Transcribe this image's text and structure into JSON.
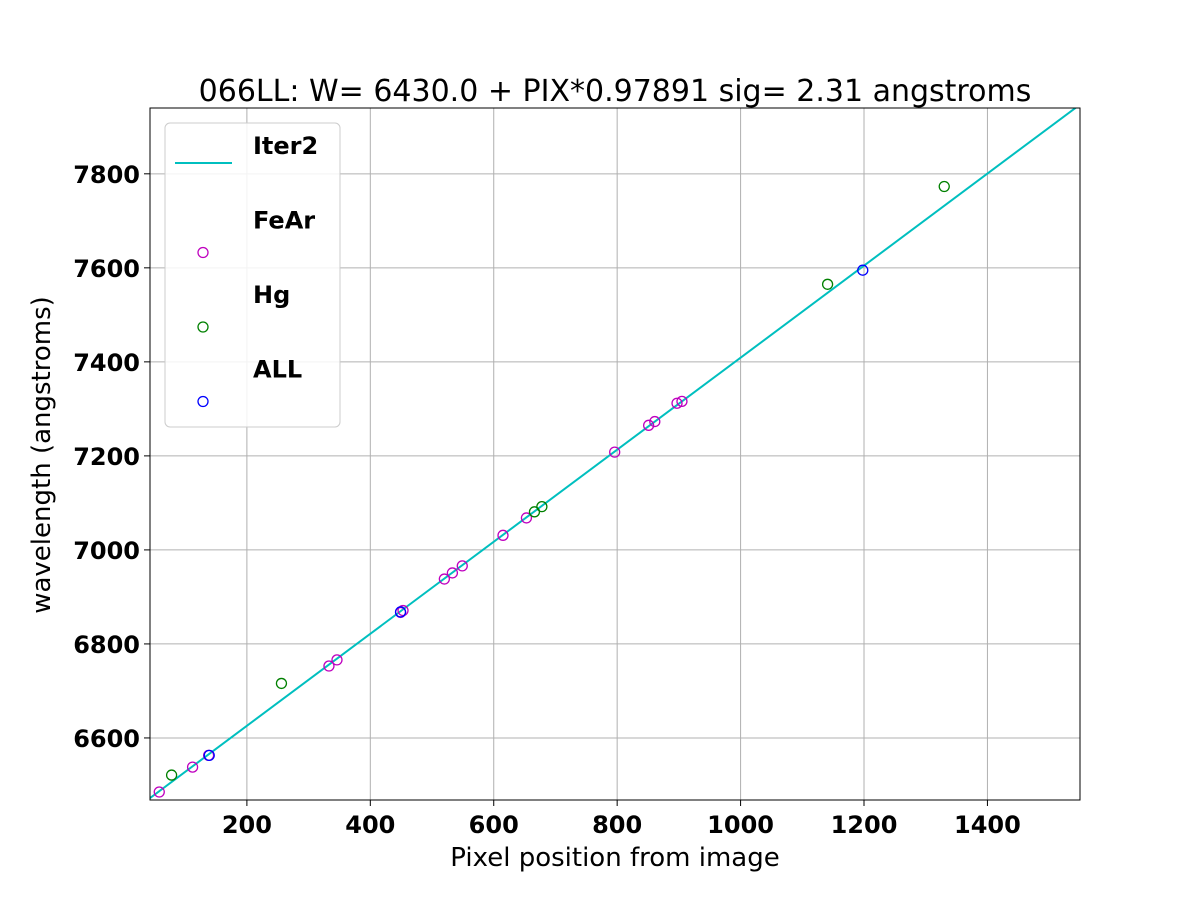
{
  "chart_data": {
    "type": "scatter",
    "title": "066LL: W= 6430.0 + PIX*0.97891  sig=  2.31 angstroms",
    "xlabel": "Pixel position from image",
    "ylabel": "wavelength (angstroms)",
    "xlim": [
      43,
      1550
    ],
    "ylim": [
      6468,
      7940
    ],
    "x_ticks": [
      200,
      400,
      600,
      800,
      1000,
      1200,
      1400
    ],
    "y_ticks": [
      6600,
      6800,
      7000,
      7200,
      7400,
      7600,
      7800
    ],
    "grid": true,
    "legend_position": "upper-left",
    "colors": {
      "fit": "#00bfbf",
      "fear": "#bf00bf",
      "hg": "#008000",
      "all": "#0000ff"
    },
    "fit_line": {
      "name": "Iter2",
      "x": [
        43,
        1550
      ],
      "y": [
        6472.1,
        7947.3
      ]
    },
    "series": [
      {
        "name": "FeAr",
        "points": [
          {
            "x": 58,
            "y": 6485
          },
          {
            "x": 112,
            "y": 6538
          },
          {
            "x": 138,
            "y": 6563
          },
          {
            "x": 333,
            "y": 6753
          },
          {
            "x": 346,
            "y": 6766
          },
          {
            "x": 449,
            "y": 6867
          },
          {
            "x": 453,
            "y": 6871
          },
          {
            "x": 520,
            "y": 6938
          },
          {
            "x": 533,
            "y": 6951
          },
          {
            "x": 549,
            "y": 6966
          },
          {
            "x": 615,
            "y": 7031
          },
          {
            "x": 653,
            "y": 7068
          },
          {
            "x": 796,
            "y": 7208
          },
          {
            "x": 851,
            "y": 7265
          },
          {
            "x": 861,
            "y": 7273
          },
          {
            "x": 897,
            "y": 7312
          },
          {
            "x": 905,
            "y": 7316
          }
        ]
      },
      {
        "name": "Hg",
        "points": [
          {
            "x": 78,
            "y": 6521
          },
          {
            "x": 256,
            "y": 6716
          },
          {
            "x": 666,
            "y": 7081
          },
          {
            "x": 678,
            "y": 7092
          },
          {
            "x": 1141,
            "y": 7565
          },
          {
            "x": 1330,
            "y": 7773
          }
        ]
      },
      {
        "name": "ALL",
        "points": [
          {
            "x": 139,
            "y": 6563
          },
          {
            "x": 449,
            "y": 6868
          },
          {
            "x": 1198,
            "y": 7595
          }
        ]
      }
    ]
  }
}
